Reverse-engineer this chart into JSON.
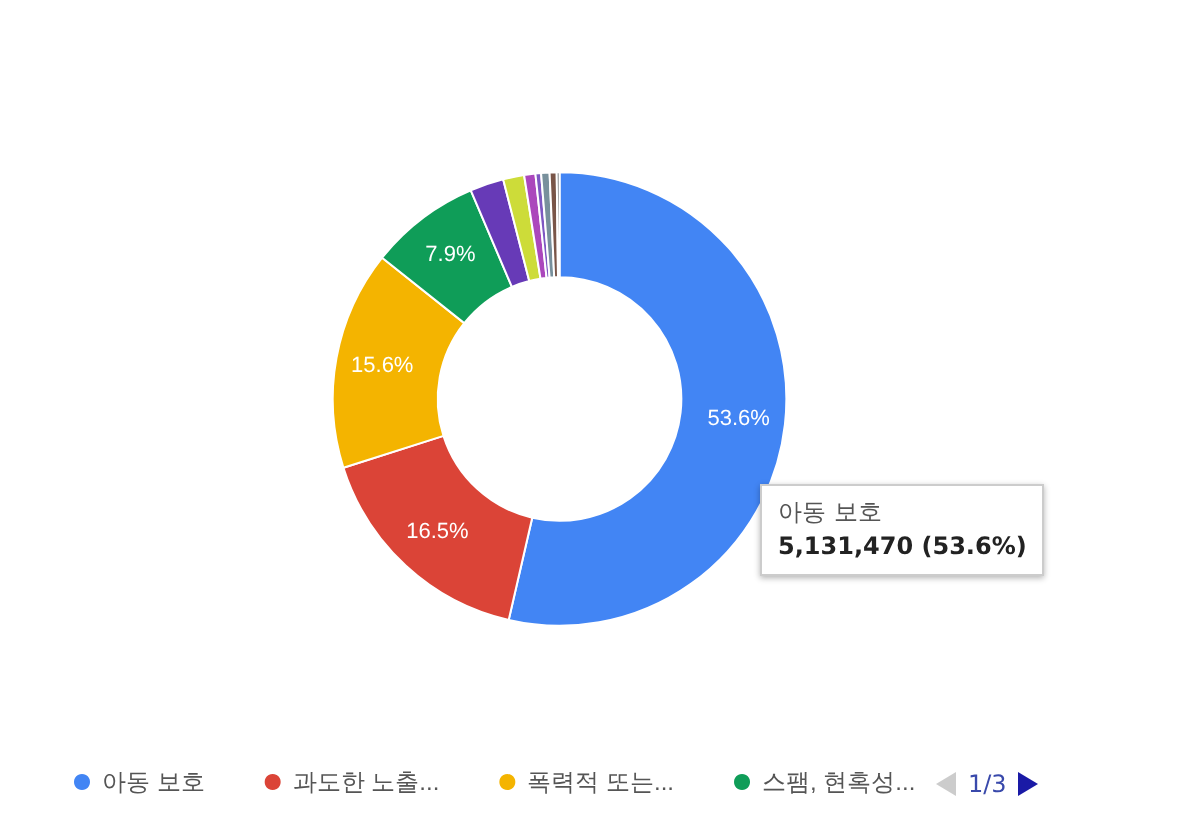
{
  "chart_data": {
    "type": "donut",
    "categories": [
      "아동 보호",
      "과도한 노출...",
      "폭력적 또는...",
      "스팸, 현혹성...",
      null,
      null,
      null,
      null,
      null,
      null,
      null
    ],
    "values": [
      53.6,
      16.5,
      15.6,
      7.9,
      2.4,
      1.5,
      0.8,
      0.4,
      0.6,
      0.5,
      0.2
    ],
    "colors": [
      "#4285f4",
      "#db4437",
      "#f4b400",
      "#0f9d58",
      "#673ab7",
      "#cddc39",
      "#ab47bc",
      "#7e57c2",
      "#78909c",
      "#795548",
      "#5f6368"
    ],
    "value_labels": [
      "53.6%",
      "16.5%",
      "15.6%",
      "7.9%",
      null,
      null,
      null,
      null,
      null,
      null,
      null
    ],
    "legend": "bottom left",
    "annotations": [
      "아동 보호",
      "5,131,470 (53.6%)",
      "1/3"
    ]
  }
}
